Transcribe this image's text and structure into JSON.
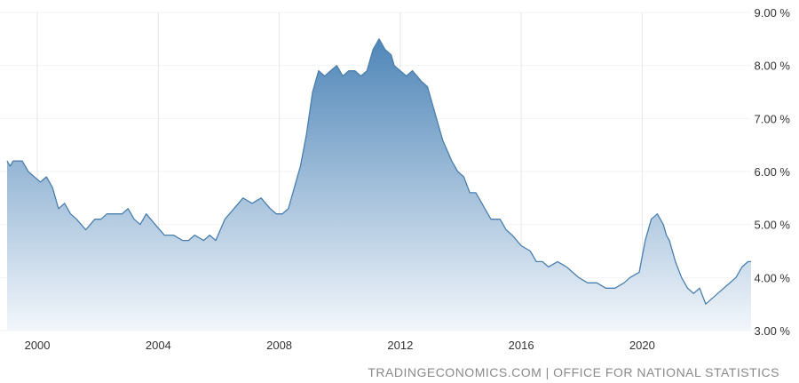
{
  "chart_data": {
    "type": "area",
    "title": "",
    "xlabel": "",
    "ylabel": "",
    "x_ticks": [
      "2000",
      "2004",
      "2008",
      "2012",
      "2016",
      "2020"
    ],
    "y_ticks": [
      "3.00 %",
      "4.00 %",
      "5.00 %",
      "6.00 %",
      "7.00 %",
      "8.00 %",
      "9.00 %"
    ],
    "ylim": [
      3,
      9
    ],
    "xlim": [
      1999.0,
      2023.6
    ],
    "grid": "vertical",
    "colors": {
      "line": "#4a7fae",
      "fill_top": "#4f86b8",
      "fill_bottom": "#f2f6fb",
      "grid": "#e6e6e6"
    },
    "series": [
      {
        "x": [
          1999.0,
          1999.1,
          1999.2,
          1999.5,
          1999.7,
          1999.9,
          2000.1,
          2000.3,
          2000.5,
          2000.7,
          2000.9,
          2001.1,
          2001.3,
          2001.6,
          2001.9,
          2002.1,
          2002.3,
          2002.6,
          2002.8,
          2003.0,
          2003.2,
          2003.4,
          2003.6,
          2003.9,
          2004.2,
          2004.5,
          2004.8,
          2005.0,
          2005.2,
          2005.5,
          2005.7,
          2005.9,
          2006.2,
          2006.5,
          2006.8,
          2007.1,
          2007.4,
          2007.7,
          2007.9,
          2008.1,
          2008.3,
          2008.5,
          2008.7,
          2008.9,
          2009.1,
          2009.3,
          2009.5,
          2009.7,
          2009.9,
          2010.1,
          2010.3,
          2010.5,
          2010.7,
          2010.9,
          2011.1,
          2011.3,
          2011.5,
          2011.7,
          2011.8,
          2012.0,
          2012.2,
          2012.4,
          2012.7,
          2012.9,
          2013.1,
          2013.4,
          2013.7,
          2013.9,
          2014.1,
          2014.3,
          2014.5,
          2014.8,
          2015.0,
          2015.3,
          2015.5,
          2015.7,
          2016.0,
          2016.3,
          2016.5,
          2016.7,
          2016.9,
          2017.2,
          2017.5,
          2017.7,
          2017.9,
          2018.2,
          2018.5,
          2018.8,
          2019.1,
          2019.4,
          2019.6,
          2019.9,
          2020.1,
          2020.3,
          2020.5,
          2020.7,
          2020.8,
          2020.9,
          2021.1,
          2021.3,
          2021.5,
          2021.7,
          2021.9,
          2022.1,
          2022.3,
          2022.5,
          2022.7,
          2022.9,
          2023.1,
          2023.3,
          2023.5,
          2023.6
        ],
        "values": [
          6.2,
          6.1,
          6.2,
          6.2,
          6.0,
          5.9,
          5.8,
          5.9,
          5.7,
          5.3,
          5.4,
          5.2,
          5.1,
          4.9,
          5.1,
          5.1,
          5.2,
          5.2,
          5.2,
          5.3,
          5.1,
          5.0,
          5.2,
          5.0,
          4.8,
          4.8,
          4.7,
          4.7,
          4.8,
          4.7,
          4.8,
          4.7,
          5.1,
          5.3,
          5.5,
          5.4,
          5.5,
          5.3,
          5.2,
          5.2,
          5.3,
          5.7,
          6.1,
          6.7,
          7.5,
          7.9,
          7.8,
          7.9,
          8.0,
          7.8,
          7.9,
          7.9,
          7.8,
          7.9,
          8.3,
          8.5,
          8.3,
          8.2,
          8.0,
          7.9,
          7.8,
          7.9,
          7.7,
          7.6,
          7.2,
          6.6,
          6.2,
          6.0,
          5.9,
          5.6,
          5.6,
          5.3,
          5.1,
          5.1,
          4.9,
          4.8,
          4.6,
          4.5,
          4.3,
          4.3,
          4.2,
          4.3,
          4.2,
          4.1,
          4.0,
          3.9,
          3.9,
          3.8,
          3.8,
          3.9,
          4.0,
          4.1,
          4.7,
          5.1,
          5.2,
          5.0,
          4.8,
          4.7,
          4.3,
          4.0,
          3.8,
          3.7,
          3.8,
          3.5,
          3.6,
          3.7,
          3.8,
          3.9,
          4.0,
          4.2,
          4.3,
          4.3
        ]
      }
    ]
  },
  "source_text": "TRADINGECONOMICS.COM | OFFICE FOR NATIONAL STATISTICS"
}
